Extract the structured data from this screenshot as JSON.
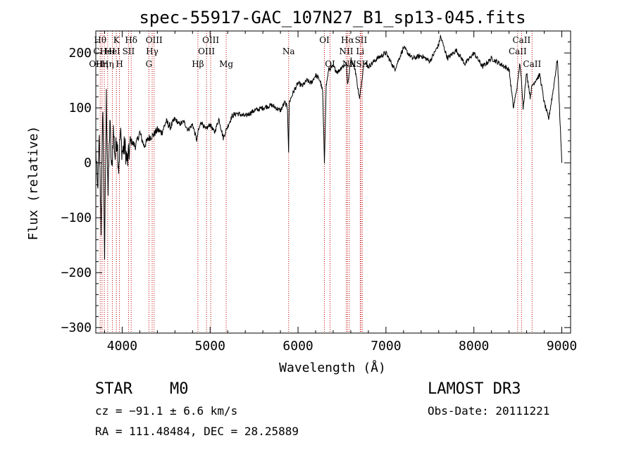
{
  "chart_data": {
    "type": "line",
    "title": "spec-55917-GAC_107N27_B1_sp13-045.fits",
    "xlabel": "Wavelength (Å)",
    "ylabel": "Flux (relative)",
    "xlim": [
      3700,
      9100
    ],
    "ylim": [
      -310,
      240
    ],
    "x_ticks": [
      4000,
      5000,
      6000,
      7000,
      8000,
      9000
    ],
    "y_ticks": [
      -300,
      -200,
      -100,
      0,
      100,
      200
    ],
    "series": [
      {
        "name": "flux",
        "x": [
          3700,
          3720,
          3740,
          3760,
          3780,
          3800,
          3820,
          3840,
          3860,
          3880,
          3900,
          3920,
          3940,
          3960,
          3980,
          4000,
          4030,
          4060,
          4100,
          4150,
          4200,
          4250,
          4300,
          4350,
          4400,
          4450,
          4500,
          4550,
          4600,
          4650,
          4700,
          4750,
          4800,
          4850,
          4861,
          4900,
          4950,
          5000,
          5050,
          5100,
          5150,
          5183,
          5250,
          5300,
          5400,
          5500,
          5600,
          5700,
          5800,
          5850,
          5880,
          5893,
          5900,
          5950,
          6000,
          6050,
          6100,
          6150,
          6200,
          6250,
          6280,
          6300,
          6320,
          6350,
          6400,
          6450,
          6500,
          6550,
          6563,
          6600,
          6650,
          6700,
          6750,
          6800,
          6900,
          7000,
          7100,
          7200,
          7300,
          7400,
          7500,
          7600,
          7620,
          7700,
          7800,
          7900,
          8000,
          8100,
          8200,
          8300,
          8400,
          8450,
          8498,
          8520,
          8542,
          8560,
          8600,
          8640,
          8662,
          8700,
          8750,
          8800,
          8850,
          8900,
          8950,
          9000
        ],
        "values": [
          25,
          -50,
          40,
          -120,
          110,
          -170,
          120,
          -60,
          80,
          -20,
          60,
          10,
          50,
          -10,
          55,
          20,
          30,
          0,
          40,
          30,
          55,
          30,
          45,
          50,
          60,
          55,
          75,
          65,
          80,
          70,
          75,
          60,
          70,
          40,
          55,
          75,
          60,
          70,
          55,
          80,
          45,
          60,
          85,
          90,
          85,
          95,
          100,
          105,
          95,
          110,
          100,
          20,
          110,
          130,
          145,
          140,
          150,
          145,
          160,
          150,
          130,
          0,
          140,
          170,
          175,
          165,
          175,
          180,
          140,
          190,
          170,
          115,
          185,
          175,
          190,
          200,
          170,
          210,
          190,
          195,
          185,
          215,
          230,
          190,
          205,
          180,
          200,
          175,
          190,
          180,
          170,
          100,
          145,
          180,
          150,
          100,
          165,
          120,
          140,
          150,
          160,
          110,
          80,
          130,
          190,
          0
        ]
      }
    ],
    "lines": [
      {
        "x": 3700,
        "label": "OII",
        "row": 3
      },
      {
        "x": 3750,
        "label": "Hθ",
        "row": 1
      },
      {
        "x": 3771,
        "label": "Hη",
        "row": 3
      },
      {
        "x": 3797,
        "label": "CHeI",
        "row": 2
      },
      {
        "x": 3835,
        "label": "Hη",
        "row": 3
      },
      {
        "x": 3889,
        "label": "HeI",
        "row": 2
      },
      {
        "x": 3934,
        "label": "K",
        "row": 1
      },
      {
        "x": 3969,
        "label": "H",
        "row": 3
      },
      {
        "x": 4072,
        "label": "SII",
        "row": 2
      },
      {
        "x": 4102,
        "label": "Hδ",
        "row": 1
      },
      {
        "x": 4304,
        "label": "G",
        "row": 3
      },
      {
        "x": 4341,
        "label": "Hγ",
        "row": 2
      },
      {
        "x": 4363,
        "label": "OIII",
        "row": 1
      },
      {
        "x": 4861,
        "label": "Hβ",
        "row": 3
      },
      {
        "x": 4959,
        "label": "OIII",
        "row": 2
      },
      {
        "x": 5007,
        "label": "OIII",
        "row": 1
      },
      {
        "x": 5183,
        "label": "Mg",
        "row": 3
      },
      {
        "x": 5893,
        "label": "Na",
        "row": 2
      },
      {
        "x": 6300,
        "label": "OI",
        "row": 1
      },
      {
        "x": 6364,
        "label": "OI",
        "row": 3
      },
      {
        "x": 6548,
        "label": "NII",
        "row": 2
      },
      {
        "x": 6563,
        "label": "Hα",
        "row": 1
      },
      {
        "x": 6583,
        "label": "NII",
        "row": 3
      },
      {
        "x": 6707,
        "label": "Li",
        "row": 2
      },
      {
        "x": 6716,
        "label": "SII",
        "row": 1
      },
      {
        "x": 6731,
        "label": "SII",
        "row": 3
      },
      {
        "x": 8498,
        "label": "CaII",
        "row": 2
      },
      {
        "x": 8542,
        "label": "CaII",
        "row": 1
      },
      {
        "x": 8662,
        "label": "CaII",
        "row": 3
      }
    ]
  },
  "info": {
    "class": "STAR",
    "subclass": "M0",
    "survey": "LAMOST DR3",
    "cz": "cz = −91.1 ± 6.6 km/s",
    "obs_date": "Obs-Date: 20111221",
    "coords": "RA = 111.48484, DEC =  28.25889"
  }
}
